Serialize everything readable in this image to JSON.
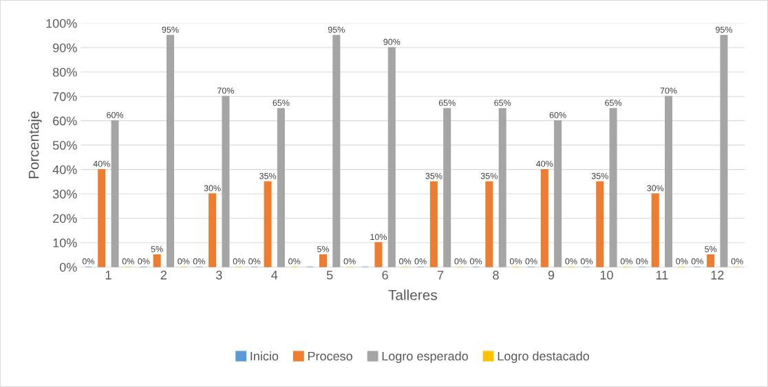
{
  "chart_data": {
    "type": "bar",
    "xlabel": "Talleres",
    "ylabel": "Porcentaje",
    "categories": [
      "1",
      "2",
      "3",
      "4",
      "5",
      "6",
      "7",
      "8",
      "9",
      "10",
      "11",
      "12"
    ],
    "series": [
      {
        "name": "Inicio",
        "color": "#5b9bd5",
        "values": [
          0,
          0,
          0,
          0,
          0,
          0,
          0,
          0,
          0,
          0,
          0,
          0
        ],
        "value_labels": [
          "0%",
          "0%",
          "0%",
          "0%",
          null,
          null,
          "0%",
          "0%",
          "0%",
          "0%",
          "0%",
          "0%"
        ]
      },
      {
        "name": "Proceso",
        "color": "#ed7d31",
        "values": [
          40,
          5,
          30,
          35,
          5,
          10,
          35,
          35,
          40,
          35,
          30,
          5
        ],
        "value_labels": [
          "40%",
          "5%",
          "30%",
          "35%",
          "5%",
          "10%",
          "35%",
          "35%",
          "40%",
          "35%",
          "30%",
          "5%"
        ]
      },
      {
        "name": "Logro esperado",
        "color": "#a5a5a5",
        "values": [
          60,
          95,
          70,
          65,
          95,
          90,
          65,
          65,
          60,
          65,
          70,
          95
        ],
        "value_labels": [
          "60%",
          "95%",
          "70%",
          "65%",
          "95%",
          "90%",
          "65%",
          "65%",
          "60%",
          "65%",
          "70%",
          "95%"
        ]
      },
      {
        "name": "Logro destacado",
        "color": "#ffc000",
        "values": [
          0,
          0,
          0,
          0,
          0,
          0,
          0,
          0,
          0,
          0,
          0,
          0
        ],
        "value_labels": [
          "0%",
          "0%",
          "0%",
          "0%",
          "0%",
          "0%",
          "0%",
          "0%",
          "0%",
          "0%",
          "0%",
          "0%"
        ]
      }
    ],
    "ylim": [
      0,
      100
    ],
    "yticks": [
      {
        "value": 0,
        "label": "0%"
      },
      {
        "value": 10,
        "label": "10%"
      },
      {
        "value": 20,
        "label": "20%"
      },
      {
        "value": 30,
        "label": "30%"
      },
      {
        "value": 40,
        "label": "40%"
      },
      {
        "value": 50,
        "label": "50%"
      },
      {
        "value": 60,
        "label": "60%"
      },
      {
        "value": 70,
        "label": "70%"
      },
      {
        "value": 80,
        "label": "80%"
      },
      {
        "value": 90,
        "label": "90%"
      },
      {
        "value": 100,
        "label": "100%"
      }
    ],
    "grid": "y",
    "legend": "bottom"
  }
}
